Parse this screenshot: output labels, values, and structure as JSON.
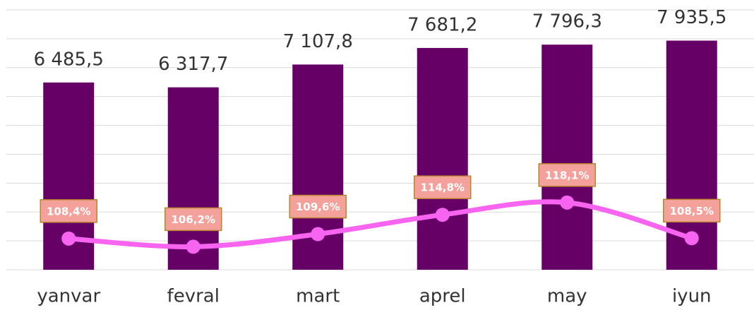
{
  "chart_data": {
    "type": "bar",
    "categories": [
      "yanvar",
      "fevral",
      "mart",
      "aprel",
      "may",
      "iyun"
    ],
    "series": [
      {
        "type": "bar",
        "color": "#660066",
        "values": [
          6485.5,
          6317.7,
          7107.8,
          7681.2,
          7796.3,
          7935.5
        ],
        "value_labels": [
          "6 485,5",
          "6 317,7",
          "7 107,8",
          "7 681,2",
          "7 796,3",
          "7 935,5"
        ]
      },
      {
        "type": "line",
        "axis": "y2",
        "color": "#f765f0",
        "smooth": true,
        "values": [
          108.4,
          106.2,
          109.6,
          114.8,
          118.1,
          108.5
        ],
        "value_labels": [
          "108,4%",
          "106,2%",
          "109,6%",
          "114,8%",
          "118,1%",
          "108,5%"
        ]
      }
    ],
    "ylim": [
      0,
      9000
    ],
    "yticks": [
      0,
      1000,
      2000,
      3000,
      4000,
      5000,
      6000,
      7000,
      8000,
      9000
    ],
    "y2lim": [
      100,
      170
    ],
    "grid": true
  }
}
